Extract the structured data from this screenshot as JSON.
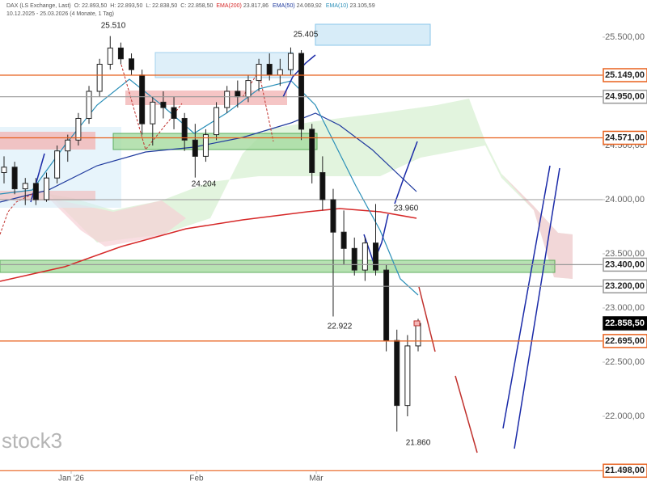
{
  "chart_data": {
    "type": "candlestick",
    "header": [
      "DAX (LS Exchange, Last)",
      "O: 22.893,50",
      "H: 22.893,50",
      "L: 22.838,50",
      "C: 22.858,50"
    ],
    "indicators": [
      {
        "name": "EMA(200)",
        "value": "23.817,86",
        "color": "#d62828"
      },
      {
        "name": "EMA(50)",
        "value": "24.069,92",
        "color": "#1f3a9e"
      },
      {
        "name": "EMA(10)",
        "value": "23.105,59",
        "color": "#2a8fb8"
      }
    ],
    "period": "10.12.2025 - 25.03.2026 (4 Monate, 1 Tag)",
    "watermark": "stock3",
    "x_labels": [
      "Jan '26",
      "Feb",
      "Mär"
    ],
    "ylim": [
      21366,
      25843
    ],
    "yticks": [
      {
        "value": 25500,
        "label": "25.500,00"
      },
      {
        "value": 24500,
        "label": "24.500,00"
      },
      {
        "value": 24000,
        "label": "24.000,00"
      },
      {
        "value": 23500,
        "label": "23.500,00"
      },
      {
        "value": 23000,
        "label": "23.000,00"
      },
      {
        "value": 22500,
        "label": "22.500,00"
      },
      {
        "value": 22000,
        "label": "22.000,00"
      }
    ],
    "levels": [
      {
        "value": 25149,
        "label": "25.149,00",
        "color": "#e8601c"
      },
      {
        "value": 24950,
        "label": "24.950,00",
        "color": "#999999"
      },
      {
        "value": 24571,
        "label": "24.571,00",
        "color": "#e8601c"
      },
      {
        "value": 23400,
        "label": "23.400,00",
        "color": "#999999"
      },
      {
        "value": 23200,
        "label": "23.200,00",
        "color": "#999999"
      },
      {
        "value": 22858.5,
        "label": "22.858,50",
        "color": "#000000"
      },
      {
        "value": 22695,
        "label": "22.695,00",
        "color": "#e8601c"
      },
      {
        "value": 21498,
        "label": "21.498,00",
        "color": "#e8601c"
      }
    ],
    "annotations": [
      "25.510",
      "25.405",
      "24.204",
      "23.960",
      "22.922",
      "21.860"
    ],
    "open": [
      24250,
      24300,
      24100,
      24150,
      24000,
      24200,
      24450,
      24550,
      24750,
      25000,
      25250,
      25400,
      25300,
      25150,
      24700,
      24900,
      24850,
      24750,
      24550,
      24400,
      24600,
      24850,
      25000,
      24950,
      25100,
      25250,
      25150,
      25200,
      25350,
      24650,
      24250,
      24000,
      23700,
      23550,
      23350,
      23600,
      23350,
      22700,
      22100,
      22650
    ],
    "high": [
      24400,
      24350,
      24200,
      24200,
      24250,
      24500,
      24600,
      24800,
      25050,
      25300,
      25510,
      25450,
      25350,
      25200,
      24950,
      25000,
      24950,
      24800,
      24700,
      24650,
      24900,
      25050,
      25100,
      25150,
      25300,
      25350,
      25300,
      25405,
      25380,
      24700,
      24400,
      24100,
      23900,
      23650,
      23650,
      23960,
      23400,
      22800,
      22750,
      22900
    ],
    "low": [
      24150,
      24050,
      23950,
      23950,
      23980,
      24150,
      24350,
      24500,
      24700,
      24950,
      25200,
      25250,
      25150,
      24600,
      24500,
      24750,
      24650,
      24450,
      24204,
      24350,
      24550,
      24800,
      24850,
      24900,
      25000,
      25100,
      25050,
      25150,
      24550,
      24150,
      23900,
      22922,
      23400,
      23300,
      23250,
      23300,
      22600,
      21860,
      22000,
      22600
    ],
    "close": [
      24300,
      24100,
      24150,
      24000,
      24200,
      24450,
      24550,
      24750,
      25000,
      25250,
      25400,
      25300,
      25200,
      24700,
      24900,
      24850,
      24750,
      24550,
      24400,
      24600,
      24850,
      25000,
      24950,
      25100,
      25250,
      25150,
      25200,
      25350,
      24650,
      24250,
      24000,
      23700,
      23550,
      23350,
      23600,
      23350,
      22700,
      22100,
      22650,
      22858.5
    ]
  }
}
